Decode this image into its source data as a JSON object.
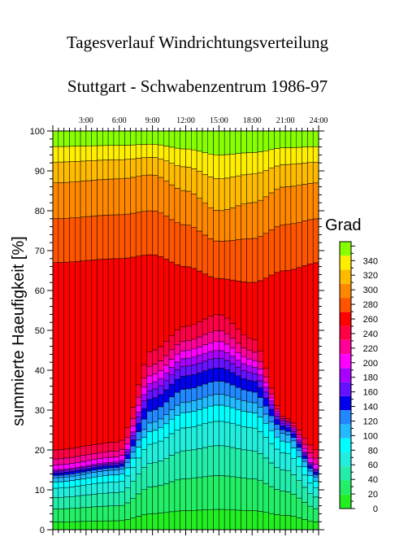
{
  "chart_data": {
    "type": "area",
    "title": "Tagesverlauf Windrichtungsverteilung",
    "subtitle": "Stuttgart - Schwabenzentrum 1986-97",
    "xlabel": "",
    "ylabel": "summierte Haeufigkeit  [%]",
    "x_ticks": [
      "3:00",
      "6:00",
      "9:00",
      "12:00",
      "15:00",
      "18:00",
      "21:00",
      "24:00"
    ],
    "x_range": [
      "0:00",
      "24:00"
    ],
    "y_ticks": [
      0,
      10,
      20,
      30,
      40,
      50,
      60,
      70,
      80,
      90,
      100
    ],
    "ylim": [
      0,
      100
    ],
    "legend": {
      "title": "Grad",
      "position": "right",
      "labels": [
        0,
        20,
        40,
        60,
        80,
        100,
        120,
        140,
        160,
        180,
        200,
        220,
        240,
        260,
        280,
        300,
        320,
        340
      ]
    },
    "boundary_profiles": {
      "0-100 deg": [
        [
          0,
          13
        ],
        [
          6,
          15
        ],
        [
          9,
          27
        ],
        [
          12,
          32
        ],
        [
          15,
          34
        ],
        [
          18,
          32
        ],
        [
          21,
          24
        ],
        [
          24,
          13
        ]
      ],
      "100-180 deg": [
        [
          0,
          15
        ],
        [
          6,
          17
        ],
        [
          9,
          37
        ],
        [
          12,
          43
        ],
        [
          15,
          45
        ],
        [
          18,
          41
        ],
        [
          21,
          27
        ],
        [
          24,
          15
        ]
      ],
      "180-240 deg": [
        [
          0,
          20
        ],
        [
          6,
          22
        ],
        [
          9,
          45
        ],
        [
          12,
          51
        ],
        [
          15,
          54
        ],
        [
          18,
          48
        ],
        [
          21,
          28
        ],
        [
          24,
          20
        ]
      ],
      "240-260 deg": [
        [
          0,
          67
        ],
        [
          6,
          68
        ],
        [
          9,
          69
        ],
        [
          12,
          66
        ],
        [
          15,
          63
        ],
        [
          18,
          62
        ],
        [
          21,
          65
        ],
        [
          24,
          67
        ]
      ],
      "260-300 deg": [
        [
          0,
          87
        ],
        [
          6,
          88
        ],
        [
          9,
          89
        ],
        [
          12,
          85
        ],
        [
          15,
          80
        ],
        [
          18,
          82
        ],
        [
          21,
          86
        ],
        [
          24,
          87
        ]
      ]
    },
    "grid": false
  },
  "colors": {
    "scale": [
      "#22ee22",
      "#22ee66",
      "#22eeaa",
      "#22eedd",
      "#00ffff",
      "#22bbff",
      "#2288ff",
      "#0000ee",
      "#6611ff",
      "#aa00ff",
      "#ff00ff",
      "#ff0099",
      "#ff0044",
      "#ff0000",
      "#ff5500",
      "#ff8800",
      "#ffbb00",
      "#ffee00",
      "#88ff00"
    ]
  }
}
